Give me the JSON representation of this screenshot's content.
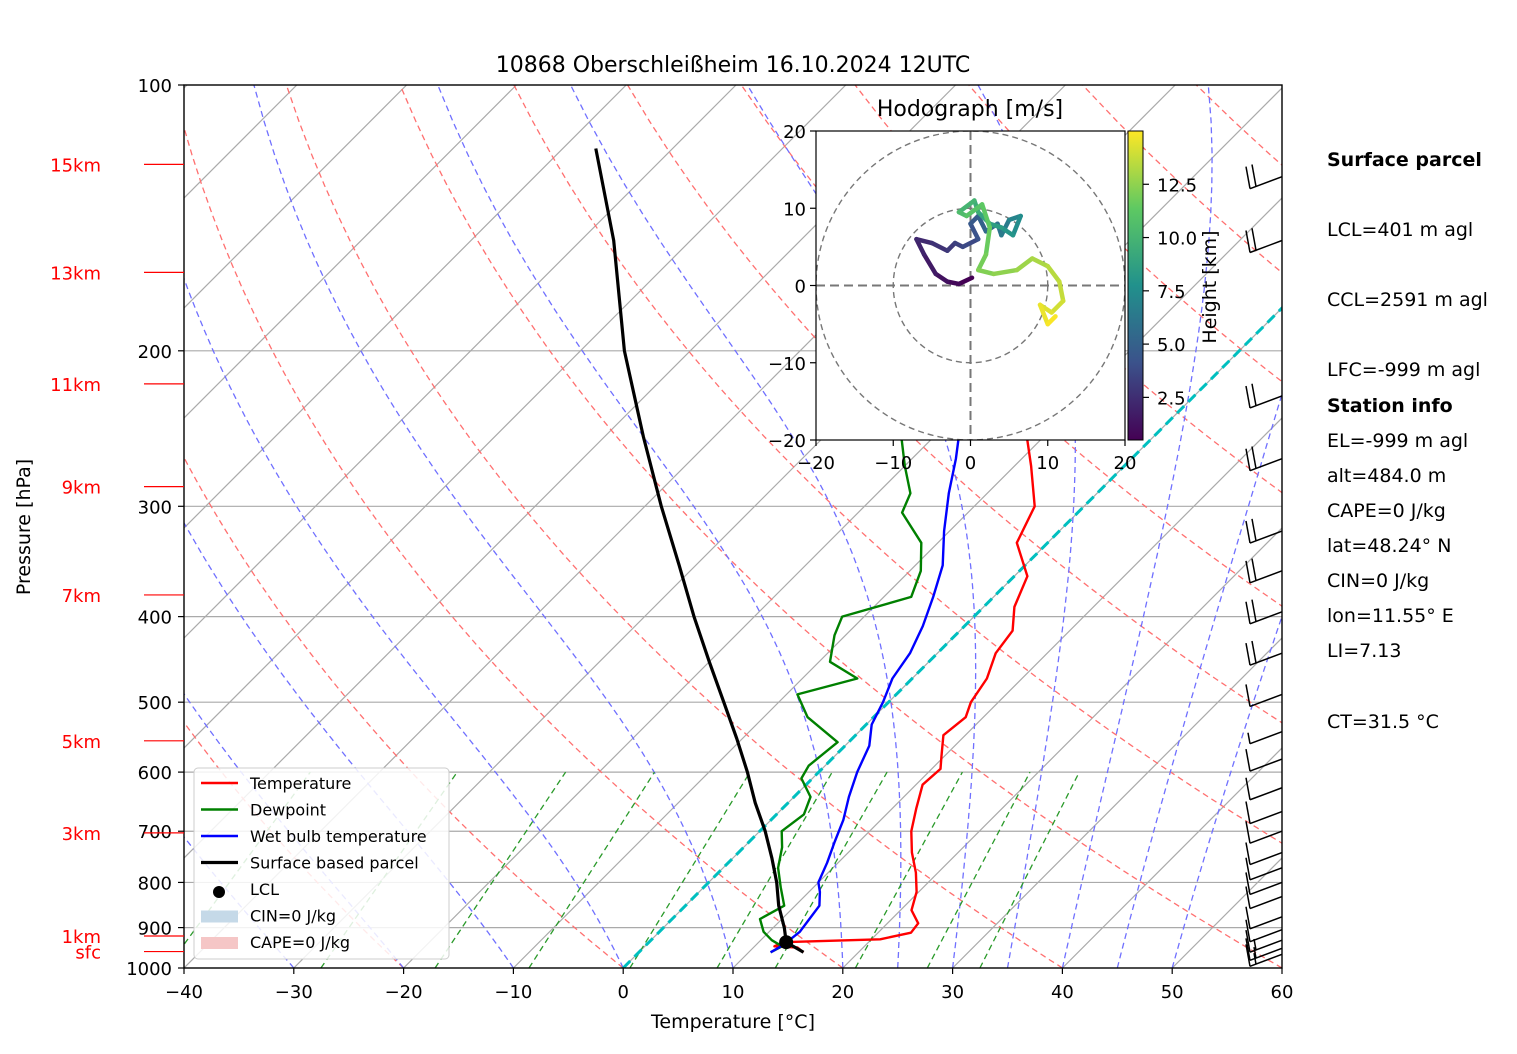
{
  "chart_data": {
    "type": "line",
    "title": "10868 Oberschleißheim 16.10.2024 12UTC",
    "xlabel": "Temperature [°C]",
    "ylabel": "Pressure [hPa]",
    "xlim": [
      -40,
      60
    ],
    "ylim": [
      1000,
      100
    ],
    "yscale": "log",
    "x_ticks": [
      "−40",
      "−30",
      "−20",
      "−10",
      "0",
      "10",
      "20",
      "30",
      "40",
      "50",
      "60"
    ],
    "y_ticks": [
      "100",
      "200",
      "300",
      "400",
      "500",
      "600",
      "700",
      "800",
      "900",
      "1000"
    ],
    "height_labels": [
      "15km",
      "13km",
      "11km",
      "9km",
      "7km",
      "5km",
      "3km",
      "1km",
      "sfc"
    ],
    "legend_position": "lower-left",
    "legend": [
      "Temperature",
      "Dewpoint",
      "Wet bulb temperature",
      "Surface based parcel",
      "LCL",
      "CIN=0 J/kg",
      "CAPE=0 J/kg"
    ],
    "colors": {
      "temperature": "#ff0000",
      "dewpoint": "#008000",
      "wetbulb": "#0000ff",
      "parcel": "#000000",
      "freezing": "#00bfbf",
      "dry_adiabat": "#ff7070",
      "moist_adiabat": "#7070ff",
      "mixing_ratio": "#2a9a2a",
      "isotherm": "#aaaaaa",
      "height_label": "#ff0000",
      "cin": "#c5d9e8",
      "cape": "#f5c6c6"
    },
    "series": [
      {
        "name": "Temperature",
        "points": [
          [
            960,
            15.0
          ],
          [
            948,
            14.0
          ],
          [
            945,
            11.8
          ],
          [
            935,
            12.2
          ],
          [
            928,
            20.8
          ],
          [
            912,
            23.0
          ],
          [
            890,
            22.8
          ],
          [
            860,
            21.0
          ],
          [
            820,
            19.8
          ],
          [
            780,
            18.0
          ],
          [
            740,
            15.8
          ],
          [
            700,
            13.8
          ],
          [
            660,
            12.2
          ],
          [
            620,
            10.6
          ],
          [
            595,
            10.8
          ],
          [
            575,
            9.7
          ],
          [
            545,
            8.0
          ],
          [
            520,
            8.4
          ],
          [
            500,
            7.5
          ],
          [
            470,
            6.8
          ],
          [
            440,
            5.3
          ],
          [
            415,
            4.8
          ],
          [
            390,
            2.8
          ],
          [
            360,
            1.2
          ],
          [
            330,
            -2.8
          ],
          [
            300,
            -4.5
          ],
          [
            270,
            -8.5
          ],
          [
            240,
            -13.2
          ],
          [
            215,
            -16.0
          ],
          [
            185,
            -19.8
          ],
          [
            172,
            -22.5
          ],
          [
            160,
            -24.5
          ],
          [
            143,
            -25.5
          ],
          [
            128,
            -30.0
          ],
          [
            118,
            -31.0
          ]
        ]
      },
      {
        "name": "Dewpoint",
        "points": [
          [
            960,
            12.0
          ],
          [
            945,
            12.5
          ],
          [
            930,
            11.0
          ],
          [
            910,
            9.5
          ],
          [
            880,
            8.0
          ],
          [
            850,
            9.0
          ],
          [
            810,
            7.0
          ],
          [
            770,
            5.0
          ],
          [
            730,
            3.5
          ],
          [
            700,
            2.0
          ],
          [
            670,
            2.5
          ],
          [
            640,
            1.5
          ],
          [
            610,
            -1.0
          ],
          [
            590,
            -1.5
          ],
          [
            555,
            -1.0
          ],
          [
            520,
            -6.0
          ],
          [
            490,
            -9.0
          ],
          [
            470,
            -5.0
          ],
          [
            450,
            -9.0
          ],
          [
            420,
            -11.0
          ],
          [
            400,
            -12.0
          ],
          [
            380,
            -7.5
          ],
          [
            355,
            -9.0
          ],
          [
            330,
            -11.5
          ],
          [
            305,
            -16.0
          ],
          [
            290,
            -17.0
          ],
          [
            270,
            -20.0
          ],
          [
            250,
            -23.0
          ],
          [
            235,
            -24.0
          ],
          [
            220,
            -27.5
          ],
          [
            200,
            -30.5
          ],
          [
            185,
            -33.0
          ],
          [
            170,
            -36.0
          ],
          [
            160,
            -40.0
          ],
          [
            150,
            -40.0
          ],
          [
            140,
            -40.5
          ],
          [
            130,
            -42.5
          ],
          [
            118,
            -44.0
          ]
        ]
      },
      {
        "name": "Wet bulb temperature",
        "points": [
          [
            960,
            12.0
          ],
          [
            945,
            12.4
          ],
          [
            930,
            12.6
          ],
          [
            910,
            12.8
          ],
          [
            880,
            12.5
          ],
          [
            850,
            12.2
          ],
          [
            820,
            11.0
          ],
          [
            800,
            10.0
          ],
          [
            760,
            9.0
          ],
          [
            720,
            7.8
          ],
          [
            680,
            6.6
          ],
          [
            640,
            5.0
          ],
          [
            600,
            3.5
          ],
          [
            560,
            2.2
          ],
          [
            530,
            0.5
          ],
          [
            500,
            -0.5
          ],
          [
            470,
            -1.8
          ],
          [
            440,
            -2.5
          ],
          [
            410,
            -3.8
          ],
          [
            380,
            -5.5
          ],
          [
            350,
            -7.5
          ],
          [
            320,
            -10.5
          ],
          [
            290,
            -13.5
          ],
          [
            265,
            -16.0
          ],
          [
            240,
            -19.0
          ],
          [
            220,
            -21.0
          ],
          [
            200,
            -24.0
          ],
          [
            185,
            -26.5
          ],
          [
            170,
            -28.5
          ],
          [
            160,
            -30.5
          ],
          [
            150,
            -30.5
          ],
          [
            140,
            -30.0
          ],
          [
            130,
            -32.0
          ],
          [
            118,
            -31.0
          ]
        ]
      },
      {
        "name": "Surface based parcel",
        "points": [
          [
            960,
            15.0
          ],
          [
            935,
            12.5
          ],
          [
            900,
            11.0
          ],
          [
            850,
            8.5
          ],
          [
            800,
            6.2
          ],
          [
            750,
            3.5
          ],
          [
            700,
            0.5
          ],
          [
            650,
            -3.0
          ],
          [
            600,
            -6.5
          ],
          [
            550,
            -10.5
          ],
          [
            500,
            -15.0
          ],
          [
            450,
            -20.0
          ],
          [
            400,
            -25.5
          ],
          [
            350,
            -31.5
          ],
          [
            300,
            -38.5
          ],
          [
            250,
            -46.5
          ],
          [
            200,
            -56.0
          ],
          [
            150,
            -67.0
          ],
          [
            118,
            -77.0
          ]
        ]
      }
    ],
    "lcl": {
      "pressure": 935,
      "temperature": 12.5
    },
    "hodograph": {
      "title": "Hodograph [m/s]",
      "xlim": [
        -20,
        20
      ],
      "ylim": [
        -20,
        20
      ],
      "ticks": [
        "−20",
        "−10",
        "0",
        "10",
        "20"
      ],
      "colorbar_label": "Height [km]",
      "colorbar_ticks": [
        "2.5",
        "5.0",
        "7.5",
        "10.0",
        "12.5"
      ],
      "colormap": [
        "#440154",
        "#3b528b",
        "#21918c",
        "#5ec962",
        "#fde725"
      ],
      "track": [
        [
          0.2,
          1.0,
          0.3
        ],
        [
          -1.5,
          0.2,
          0.8
        ],
        [
          -3.0,
          0.5,
          1.2
        ],
        [
          -4.5,
          1.5,
          1.6
        ],
        [
          -6.0,
          4.0,
          2.0
        ],
        [
          -7.0,
          6.0,
          2.3
        ],
        [
          -5.0,
          5.5,
          2.7
        ],
        [
          -3.0,
          4.5,
          3.0
        ],
        [
          -2.0,
          5.5,
          3.3
        ],
        [
          -1.0,
          5.0,
          3.7
        ],
        [
          1.0,
          6.0,
          4.2
        ],
        [
          0.0,
          8.0,
          4.6
        ],
        [
          1.0,
          9.0,
          5.0
        ],
        [
          2.0,
          7.0,
          5.5
        ],
        [
          3.5,
          8.0,
          6.0
        ],
        [
          4.0,
          6.5,
          6.5
        ],
        [
          5.0,
          8.5,
          7.0
        ],
        [
          6.5,
          9.0,
          7.5
        ],
        [
          5.5,
          6.5,
          8.0
        ],
        [
          4.0,
          7.5,
          8.5
        ],
        [
          2.5,
          8.0,
          9.0
        ],
        [
          1.0,
          9.5,
          9.5
        ],
        [
          0.5,
          11.0,
          10.0
        ],
        [
          -1.5,
          9.5,
          10.5
        ],
        [
          -0.5,
          9.0,
          11.0
        ],
        [
          1.5,
          10.5,
          11.3
        ],
        [
          2.5,
          7.5,
          11.6
        ],
        [
          2.0,
          4.0,
          11.9
        ],
        [
          1.0,
          2.0,
          12.2
        ],
        [
          3.0,
          1.5,
          12.5
        ],
        [
          6.0,
          2.0,
          12.8
        ],
        [
          8.0,
          3.5,
          13.1
        ],
        [
          10.0,
          2.5,
          13.4
        ],
        [
          11.5,
          0.5,
          13.7
        ],
        [
          12.0,
          -2.0,
          14.0
        ],
        [
          10.5,
          -3.5,
          14.3
        ],
        [
          9.0,
          -2.5,
          14.6
        ],
        [
          10.0,
          -5.0,
          14.9
        ],
        [
          11.0,
          -4.0,
          15.2
        ]
      ]
    },
    "wind_barbs": [
      {
        "pressure": 965,
        "speed_kt": 15
      },
      {
        "pressure": 950,
        "speed_kt": 15
      },
      {
        "pressure": 930,
        "speed_kt": 15
      },
      {
        "pressure": 905,
        "speed_kt": 10
      },
      {
        "pressure": 875,
        "speed_kt": 10
      },
      {
        "pressure": 830,
        "speed_kt": 10
      },
      {
        "pressure": 800,
        "speed_kt": 10
      },
      {
        "pressure": 770,
        "speed_kt": 10
      },
      {
        "pressure": 740,
        "speed_kt": 10
      },
      {
        "pressure": 700,
        "speed_kt": 10
      },
      {
        "pressure": 665,
        "speed_kt": 10
      },
      {
        "pressure": 625,
        "speed_kt": 10
      },
      {
        "pressure": 580,
        "speed_kt": 10
      },
      {
        "pressure": 540,
        "speed_kt": 5
      },
      {
        "pressure": 490,
        "speed_kt": 10
      },
      {
        "pressure": 440,
        "speed_kt": 20
      },
      {
        "pressure": 395,
        "speed_kt": 20
      },
      {
        "pressure": 355,
        "speed_kt": 20
      },
      {
        "pressure": 320,
        "speed_kt": 20
      },
      {
        "pressure": 265,
        "speed_kt": 20
      },
      {
        "pressure": 225,
        "speed_kt": 20
      },
      {
        "pressure": 150,
        "speed_kt": 20
      },
      {
        "pressure": 127,
        "speed_kt": 20
      }
    ]
  },
  "surface_parcel": {
    "heading": "Surface parcel",
    "lines": [
      "LCL=401 m agl",
      "CCL=2591 m agl",
      "LFC=-999 m agl",
      "EL=-999 m agl",
      "CAPE=0 J/kg",
      "CIN=0 J/kg",
      "LI=7.13",
      "CT=31.5 °C"
    ]
  },
  "station_info": {
    "heading": "Station info",
    "lines": [
      "alt=484.0 m",
      "lat=48.24° N",
      "lon=11.55° E"
    ]
  }
}
